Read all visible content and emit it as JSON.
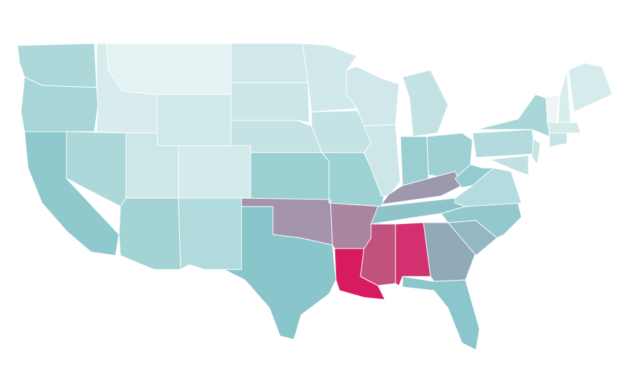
{
  "regions": [
    {
      "color": "#acd8da"
    },
    {
      "color": "#a8d5d7"
    },
    {
      "color": "#8fc9ce"
    },
    {
      "color": "#acd8d9"
    },
    {
      "color": "#d9eced"
    },
    {
      "color": "#e4f2f3"
    },
    {
      "color": "#cfe8ea"
    },
    {
      "color": "#cde7e8"
    },
    {
      "color": "#d4ebec"
    },
    {
      "color": "#a3d3d5"
    },
    {
      "color": "#b1dadc"
    },
    {
      "color": "#d0e8ea"
    },
    {
      "color": "#cae6e7"
    },
    {
      "color": "#c5e3e5"
    },
    {
      "color": "#9bd0d2"
    },
    {
      "color": "#a393ab"
    },
    {
      "color": "#89c6cc"
    },
    {
      "color": "#d2e9eb"
    },
    {
      "color": "#c5e3e5"
    },
    {
      "color": "#9dd1d3"
    },
    {
      "color": "#a9859f"
    },
    {
      "color": "#d81b60"
    },
    {
      "color": "#d0e8ea"
    },
    {
      "color": "#cde7e9"
    },
    {
      "color": "#c4e2e4"
    },
    {
      "color": "#9acfd2"
    },
    {
      "color": "#9fd1d4"
    },
    {
      "color": "#9d98ae"
    },
    {
      "color": "#8fc3ca"
    },
    {
      "color": "#c0527d"
    },
    {
      "color": "#d2306f"
    },
    {
      "color": "#91aab8"
    },
    {
      "color": "#8ac6cc"
    },
    {
      "color": "#94b8c3"
    },
    {
      "color": "#93c8cd"
    },
    {
      "color": "#b4dcdf"
    },
    {
      "color": "#93cbcf"
    },
    {
      "color": "#b3dbdd"
    },
    {
      "color": "#a9d6d9"
    },
    {
      "color": "#c8e5e6"
    },
    {
      "color": "#c0e0e2"
    },
    {
      "color": "#f1f5f5"
    },
    {
      "color": "#d8eded"
    },
    {
      "color": "#d6ecec"
    },
    {
      "color": "#d4ebec"
    },
    {
      "color": "#c6e4e5"
    }
  ]
}
